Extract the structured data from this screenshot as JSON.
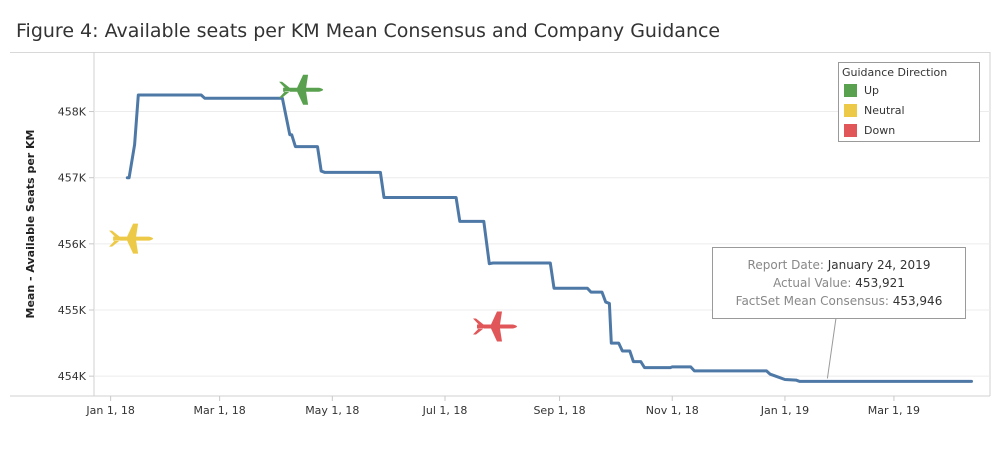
{
  "title": "Figure 4: Available seats per KM Mean Consensus and Company Guidance",
  "colors": {
    "line": "#4e79a7",
    "up": "#59a14f",
    "neutral": "#edc948",
    "down": "#e15759"
  },
  "legend": {
    "title": "Guidance Direction",
    "items": [
      {
        "label": "Up",
        "color": "#59a14f"
      },
      {
        "label": "Neutral",
        "color": "#edc948"
      },
      {
        "label": "Down",
        "color": "#e15759"
      }
    ]
  },
  "tooltip": {
    "report_date_label": "Report Date:",
    "report_date": "January 24, 2019",
    "actual_label": "Actual Value:",
    "actual_value": "453,921",
    "consensus_label": "FactSet Mean Consensus:",
    "consensus_value": "453,946"
  },
  "chart_data": {
    "type": "line",
    "ylabel": "Mean - Available Seats per KM",
    "xlabel": "",
    "x_ticks": [
      {
        "date": "2018-01-01",
        "label": "Jan 1, 18"
      },
      {
        "date": "2018-03-01",
        "label": "Mar 1, 18"
      },
      {
        "date": "2018-05-01",
        "label": "May 1, 18"
      },
      {
        "date": "2018-07-01",
        "label": "Jul 1, 18"
      },
      {
        "date": "2018-09-01",
        "label": "Sep 1, 18"
      },
      {
        "date": "2018-11-01",
        "label": "Nov 1, 18"
      },
      {
        "date": "2019-01-01",
        "label": "Jan 1, 19"
      },
      {
        "date": "2019-03-01",
        "label": "Mar 1, 19"
      }
    ],
    "y_ticks": [
      {
        "value": 454000,
        "label": "454K"
      },
      {
        "value": 455000,
        "label": "455K"
      },
      {
        "value": 456000,
        "label": "456K"
      },
      {
        "value": 457000,
        "label": "457K"
      },
      {
        "value": 458000,
        "label": "458K"
      }
    ],
    "xlim": [
      "2017-12-23",
      "2019-04-22"
    ],
    "ylim": [
      453700,
      458900
    ],
    "grid": "horizontal",
    "legend_position": "top-right",
    "series": [
      {
        "values": [
          [
            "2018-01-10",
            457000
          ],
          [
            "2018-01-11",
            457000
          ],
          [
            "2018-01-14",
            457500
          ],
          [
            "2018-01-16",
            458250
          ],
          [
            "2018-02-19",
            458250
          ],
          [
            "2018-02-21",
            458200
          ],
          [
            "2018-04-04",
            458200
          ],
          [
            "2018-04-08",
            457650
          ],
          [
            "2018-04-09",
            457650
          ],
          [
            "2018-04-11",
            457470
          ],
          [
            "2018-04-23",
            457470
          ],
          [
            "2018-04-25",
            457100
          ],
          [
            "2018-04-27",
            457080
          ],
          [
            "2018-05-27",
            457080
          ],
          [
            "2018-05-29",
            456700
          ],
          [
            "2018-07-07",
            456700
          ],
          [
            "2018-07-09",
            456340
          ],
          [
            "2018-07-22",
            456340
          ],
          [
            "2018-07-25",
            455700
          ],
          [
            "2018-07-27",
            455710
          ],
          [
            "2018-08-27",
            455710
          ],
          [
            "2018-08-29",
            455330
          ],
          [
            "2018-09-16",
            455330
          ],
          [
            "2018-09-18",
            455270
          ],
          [
            "2018-09-24",
            455270
          ],
          [
            "2018-09-26",
            455120
          ],
          [
            "2018-09-28",
            455100
          ],
          [
            "2018-09-29",
            454500
          ],
          [
            "2018-10-03",
            454500
          ],
          [
            "2018-10-05",
            454380
          ],
          [
            "2018-10-09",
            454380
          ],
          [
            "2018-10-11",
            454220
          ],
          [
            "2018-10-15",
            454220
          ],
          [
            "2018-10-17",
            454130
          ],
          [
            "2018-10-31",
            454130
          ],
          [
            "2018-11-01",
            454140
          ],
          [
            "2018-11-11",
            454140
          ],
          [
            "2018-11-13",
            454080
          ],
          [
            "2018-12-22",
            454080
          ],
          [
            "2018-12-24",
            454030
          ],
          [
            "2018-12-28",
            453990
          ],
          [
            "2019-01-01",
            453950
          ],
          [
            "2019-01-07",
            453940
          ],
          [
            "2019-01-09",
            453920
          ],
          [
            "2019-04-12",
            453920
          ]
        ]
      }
    ],
    "guidance_markers": [
      {
        "direction": "Up",
        "date": "2018-04-13",
        "value": 458330
      },
      {
        "direction": "Neutral",
        "date": "2018-01-11",
        "value": 456080
      },
      {
        "direction": "Down",
        "date": "2018-07-27",
        "value": 454750
      }
    ],
    "annotation": {
      "date": "2019-01-24",
      "value": 453921
    }
  }
}
